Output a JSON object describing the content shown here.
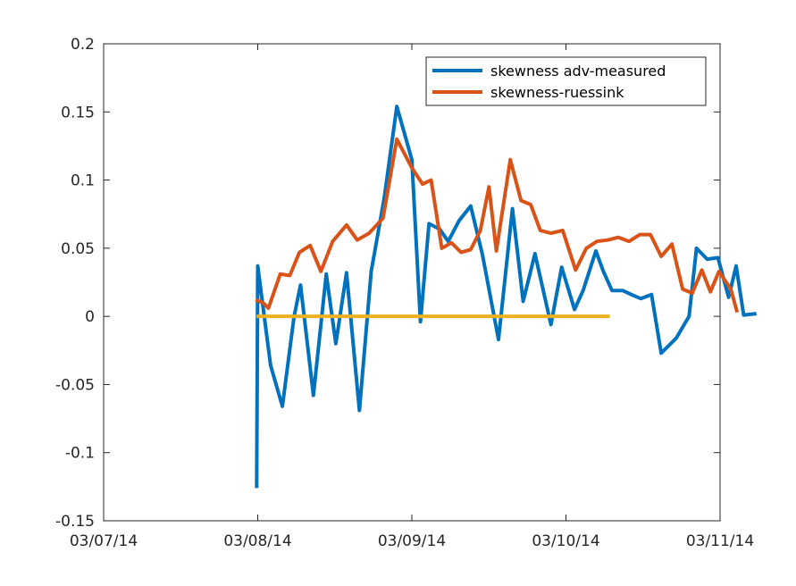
{
  "chart_data": {
    "type": "line",
    "title": "",
    "xlabel": "",
    "ylabel": "",
    "xlim": [
      "03/07/14",
      "03/11/14"
    ],
    "ylim": [
      -0.15,
      0.2
    ],
    "x_ticks": [
      "03/07/14",
      "03/08/14",
      "03/09/14",
      "03/10/14",
      "03/11/14"
    ],
    "y_ticks": [
      "-0.15",
      "-0.1",
      "-0.05",
      "0",
      "0.05",
      "0.1",
      "0.15",
      "0.2"
    ],
    "grid": false,
    "legend_position": "top-right",
    "series": [
      {
        "name": "skewness adv-measured",
        "color": "#0072BD",
        "points": [
          [
            "03/07/14 23:50",
            -0.126
          ],
          [
            "03/08/14 00:00",
            0.037
          ],
          [
            "03/08/14 02:00",
            -0.036
          ],
          [
            "03/08/14 03:50",
            -0.066
          ],
          [
            "03/08/14 05:40",
            0.0
          ],
          [
            "03/08/14 06:40",
            0.023
          ],
          [
            "03/08/14 08:40",
            -0.058
          ],
          [
            "03/08/14 10:40",
            0.031
          ],
          [
            "03/08/14 12:10",
            -0.02
          ],
          [
            "03/08/14 13:50",
            0.032
          ],
          [
            "03/08/14 15:50",
            -0.069
          ],
          [
            "03/08/14 17:40",
            0.033
          ],
          [
            "03/08/14 19:40",
            0.086
          ],
          [
            "03/08/14 21:40",
            0.154
          ],
          [
            "03/08/14 24:00",
            0.115
          ],
          [
            "03/09/14 01:20",
            -0.004
          ],
          [
            "03/09/14 02:40",
            0.068
          ],
          [
            "03/09/14 04:20",
            0.064
          ],
          [
            "03/09/14 05:40",
            0.055
          ],
          [
            "03/09/14 07:20",
            0.07
          ],
          [
            "03/09/14 09:10",
            0.081
          ],
          [
            "03/09/14 11:00",
            0.045
          ],
          [
            "03/09/14 13:30",
            -0.017
          ],
          [
            "03/09/14 15:40",
            0.079
          ],
          [
            "03/09/14 17:20",
            0.011
          ],
          [
            "03/09/14 19:10",
            0.046
          ],
          [
            "03/09/14 21:40",
            -0.006
          ],
          [
            "03/09/14 23:20",
            0.036
          ],
          [
            "03/10/14 01:20",
            0.005
          ],
          [
            "03/10/14 02:40",
            0.019
          ],
          [
            "03/10/14 04:40",
            0.048
          ],
          [
            "03/10/14 05:50",
            0.033
          ],
          [
            "03/10/14 07:10",
            0.019
          ],
          [
            "03/10/14 08:50",
            0.019
          ],
          [
            "03/10/14 10:10",
            0.016
          ],
          [
            "03/10/14 11:40",
            0.013
          ],
          [
            "03/10/14 13:20",
            0.016
          ],
          [
            "03/10/14 14:50",
            -0.027
          ],
          [
            "03/10/14 17:10",
            -0.016
          ],
          [
            "03/10/14 19:10",
            0.0
          ],
          [
            "03/10/14 20:20",
            0.05
          ],
          [
            "03/10/14 22:00",
            0.042
          ],
          [
            "03/10/14 23:40",
            0.043
          ],
          [
            "03/11/14 01:20",
            0.014
          ],
          [
            "03/11/14 02:30",
            0.037
          ],
          [
            "03/11/14 03:40",
            0.001
          ],
          [
            "03/11/14 05:40",
            0.002
          ]
        ]
      },
      {
        "name": "skewness-ruessink",
        "color": "#D95319",
        "points": [
          [
            "03/07/14 23:40",
            0.012
          ],
          [
            "03/08/14 00:50",
            0.01
          ],
          [
            "03/08/14 01:40",
            0.006
          ],
          [
            "03/08/14 03:30",
            0.031
          ],
          [
            "03/08/14 05:00",
            0.03
          ],
          [
            "03/08/14 06:30",
            0.047
          ],
          [
            "03/08/14 08:10",
            0.052
          ],
          [
            "03/08/14 09:50",
            0.033
          ],
          [
            "03/08/14 11:40",
            0.055
          ],
          [
            "03/08/14 13:50",
            0.067
          ],
          [
            "03/08/14 15:30",
            0.056
          ],
          [
            "03/08/14 17:20",
            0.061
          ],
          [
            "03/08/14 19:30",
            0.072
          ],
          [
            "03/08/14 21:40",
            0.13
          ],
          [
            "03/09/14 00:00",
            0.109
          ],
          [
            "03/09/14 01:40",
            0.097
          ],
          [
            "03/09/14 03:00",
            0.1
          ],
          [
            "03/09/14 04:40",
            0.05
          ],
          [
            "03/09/14 06:10",
            0.054
          ],
          [
            "03/09/14 07:40",
            0.047
          ],
          [
            "03/09/14 09:10",
            0.049
          ],
          [
            "03/09/14 10:40",
            0.063
          ],
          [
            "03/09/14 12:00",
            0.095
          ],
          [
            "03/09/14 13:10",
            0.048
          ],
          [
            "03/09/14 15:20",
            0.115
          ],
          [
            "03/09/14 17:00",
            0.085
          ],
          [
            "03/09/14 18:30",
            0.082
          ],
          [
            "03/09/14 20:00",
            0.063
          ],
          [
            "03/09/14 21:40",
            0.061
          ],
          [
            "03/09/14 23:30",
            0.063
          ],
          [
            "03/10/14 01:30",
            0.034
          ],
          [
            "03/10/14 03:10",
            0.05
          ],
          [
            "03/10/14 04:50",
            0.055
          ],
          [
            "03/10/14 06:30",
            0.056
          ],
          [
            "03/10/14 08:10",
            0.058
          ],
          [
            "03/10/14 09:50",
            0.055
          ],
          [
            "03/10/14 11:30",
            0.06
          ],
          [
            "03/10/14 13:10",
            0.06
          ],
          [
            "03/10/14 14:50",
            0.044
          ],
          [
            "03/10/14 16:30",
            0.053
          ],
          [
            "03/10/14 18:10",
            0.02
          ],
          [
            "03/10/14 19:40",
            0.017
          ],
          [
            "03/10/14 21:10",
            0.034
          ],
          [
            "03/10/14 22:30",
            0.018
          ],
          [
            "03/10/14 23:50",
            0.033
          ],
          [
            "03/11/14 01:40",
            0.02
          ],
          [
            "03/11/14 02:40",
            0.003
          ]
        ]
      },
      {
        "color": "#EDB120",
        "points": [
          [
            "03/07/14 23:50",
            0.0
          ],
          [
            "03/10/14 06:50",
            0.0
          ]
        ]
      }
    ]
  }
}
